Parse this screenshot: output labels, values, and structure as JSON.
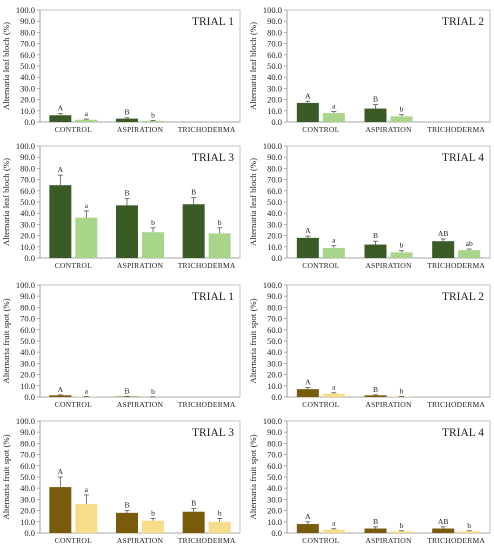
{
  "chart_data": [
    {
      "type": "bar",
      "title": "TRIAL 1",
      "ylabel": "Alternaria leaf bloch (%)",
      "ylim": [
        0,
        100
      ],
      "yticks": [
        "0.0",
        "10.0",
        "20.0",
        "30.0",
        "40.0",
        "50.0",
        "60.0",
        "70.0",
        "80.0",
        "90.0",
        "100.0"
      ],
      "categories": [
        "CONTROL",
        "ASPIRATION",
        "TRICHODERMA"
      ],
      "colors": [
        "#3a5a26",
        "#a8d58a"
      ],
      "series": [
        {
          "values": [
            6,
            3,
            0
          ],
          "errors": [
            1.5,
            0.8,
            0
          ],
          "letters": [
            "A",
            "B",
            ""
          ]
        },
        {
          "values": [
            2,
            1,
            0
          ],
          "errors": [
            0.6,
            0.4,
            0
          ],
          "letters": [
            "a",
            "b",
            ""
          ]
        }
      ]
    },
    {
      "type": "bar",
      "title": "TRIAL 2",
      "ylabel": "Alternaria leaf bloch (%)",
      "ylim": [
        0,
        100
      ],
      "yticks": [
        "0.0",
        "10.0",
        "20.0",
        "30.0",
        "40.0",
        "50.0",
        "60.0",
        "70.0",
        "80.0",
        "90.0",
        "100.0"
      ],
      "categories": [
        "CONTROL",
        "ASPIRATION",
        "TRICHODERMA"
      ],
      "colors": [
        "#3a5a26",
        "#a8d58a"
      ],
      "series": [
        {
          "values": [
            17,
            12,
            0
          ],
          "errors": [
            1.5,
            3.5,
            0
          ],
          "letters": [
            "A",
            "B",
            ""
          ]
        },
        {
          "values": [
            8,
            5,
            0
          ],
          "errors": [
            1.5,
            1.5,
            0
          ],
          "letters": [
            "a",
            "b",
            ""
          ]
        }
      ]
    },
    {
      "type": "bar",
      "title": "TRIAL 3",
      "ylabel": "Alternaria leaf bloch (%)",
      "ylim": [
        0,
        100
      ],
      "yticks": [
        "0.0",
        "10.0",
        "20.0",
        "30.0",
        "40.0",
        "50.0",
        "60.0",
        "70.0",
        "80.0",
        "90.0",
        "100.0"
      ],
      "categories": [
        "CONTROL",
        "ASPIRATION",
        "TRICHODERMA"
      ],
      "colors": [
        "#3a5a26",
        "#a8d58a"
      ],
      "series": [
        {
          "values": [
            65,
            47,
            48
          ],
          "errors": [
            9,
            6,
            6
          ],
          "letters": [
            "A",
            "B",
            "B"
          ]
        },
        {
          "values": [
            36,
            23,
            22
          ],
          "errors": [
            6,
            4,
            5
          ],
          "letters": [
            "a",
            "b",
            "b"
          ]
        }
      ]
    },
    {
      "type": "bar",
      "title": "TRIAL 4",
      "ylabel": "Alternaria leaf bloch (%)",
      "ylim": [
        0,
        100
      ],
      "yticks": [
        "0.0",
        "10.0",
        "20.0",
        "30.0",
        "40.0",
        "50.0",
        "60.0",
        "70.0",
        "80.0",
        "90.0",
        "100.0"
      ],
      "categories": [
        "CONTROL",
        "ASPIRATION",
        "TRICHODERMA"
      ],
      "colors": [
        "#3a5a26",
        "#a8d58a"
      ],
      "series": [
        {
          "values": [
            18,
            12,
            15
          ],
          "errors": [
            1.5,
            3,
            2
          ],
          "letters": [
            "A",
            "B",
            "AB"
          ]
        },
        {
          "values": [
            9,
            5,
            7
          ],
          "errors": [
            2,
            1.5,
            1
          ],
          "letters": [
            "a",
            "b",
            "ab"
          ]
        }
      ]
    },
    {
      "type": "bar",
      "title": "TRIAL 1",
      "ylabel": "Alternaria fruit spot (%)",
      "ylim": [
        0,
        100
      ],
      "yticks": [
        "0.0",
        "10.0",
        "20.0",
        "30.0",
        "40.0",
        "50.0",
        "60.0",
        "70.0",
        "80.0",
        "90.0",
        "100.0"
      ],
      "categories": [
        "CONTROL",
        "ASPIRATION",
        "TRICHODERMA"
      ],
      "colors": [
        "#7a5a0c",
        "#f7dc8a"
      ],
      "series": [
        {
          "values": [
            1.5,
            0.4,
            0
          ],
          "errors": [
            0.4,
            0.1,
            0
          ],
          "letters": [
            "A",
            "B",
            ""
          ]
        },
        {
          "values": [
            0.4,
            0.1,
            0
          ],
          "errors": [
            0.1,
            0.05,
            0
          ],
          "letters": [
            "a",
            "b",
            ""
          ]
        }
      ]
    },
    {
      "type": "bar",
      "title": "TRIAL 2",
      "ylabel": "Alternaria fruit spot (%)",
      "ylim": [
        0,
        100
      ],
      "yticks": [
        "0.0",
        "10.0",
        "20.0",
        "30.0",
        "40.0",
        "50.0",
        "60.0",
        "70.0",
        "80.0",
        "90.0",
        "100.0"
      ],
      "categories": [
        "CONTROL",
        "ASPIRATION",
        "TRICHODERMA"
      ],
      "colors": [
        "#7a5a0c",
        "#f7dc8a"
      ],
      "series": [
        {
          "values": [
            7,
            1.5,
            0
          ],
          "errors": [
            1.5,
            0.4,
            0
          ],
          "letters": [
            "A",
            "B",
            ""
          ]
        },
        {
          "values": [
            3,
            0.4,
            0
          ],
          "errors": [
            0.8,
            0.1,
            0
          ],
          "letters": [
            "a",
            "b",
            ""
          ]
        }
      ]
    },
    {
      "type": "bar",
      "title": "TRIAL 3",
      "ylabel": "Alternaria fruit spot (%)",
      "ylim": [
        0,
        100
      ],
      "yticks": [
        "0.0",
        "10.0",
        "20.0",
        "30.0",
        "40.0",
        "50.0",
        "60.0",
        "70.0",
        "80.0",
        "90.0",
        "100.0"
      ],
      "categories": [
        "CONTROL",
        "ASPIRATION",
        "TRICHODERMA"
      ],
      "colors": [
        "#7a5a0c",
        "#f7dc8a"
      ],
      "series": [
        {
          "values": [
            41,
            18,
            19
          ],
          "errors": [
            9,
            2,
            3
          ],
          "letters": [
            "A",
            "B",
            "B"
          ]
        },
        {
          "values": [
            26,
            11,
            10
          ],
          "errors": [
            8,
            2,
            3
          ],
          "letters": [
            "a",
            "b",
            "b"
          ]
        }
      ]
    },
    {
      "type": "bar",
      "title": "TRIAL 4",
      "ylabel": "Alternaria fruit spot (%)",
      "ylim": [
        0,
        100
      ],
      "yticks": [
        "0.0",
        "10.0",
        "20.0",
        "30.0",
        "40.0",
        "50.0",
        "60.0",
        "70.0",
        "80.0",
        "90.0",
        "100.0"
      ],
      "categories": [
        "CONTROL",
        "ASPIRATION",
        "TRICHODERMA"
      ],
      "colors": [
        "#7a5a0c",
        "#f7dc8a"
      ],
      "series": [
        {
          "values": [
            8,
            4,
            4
          ],
          "errors": [
            2,
            1.5,
            1.5
          ],
          "letters": [
            "A",
            "B",
            "AB"
          ]
        },
        {
          "values": [
            3,
            1.5,
            1.5
          ],
          "errors": [
            0.8,
            0.5,
            0.5
          ],
          "letters": [
            "a",
            "b",
            "b"
          ]
        }
      ]
    }
  ]
}
